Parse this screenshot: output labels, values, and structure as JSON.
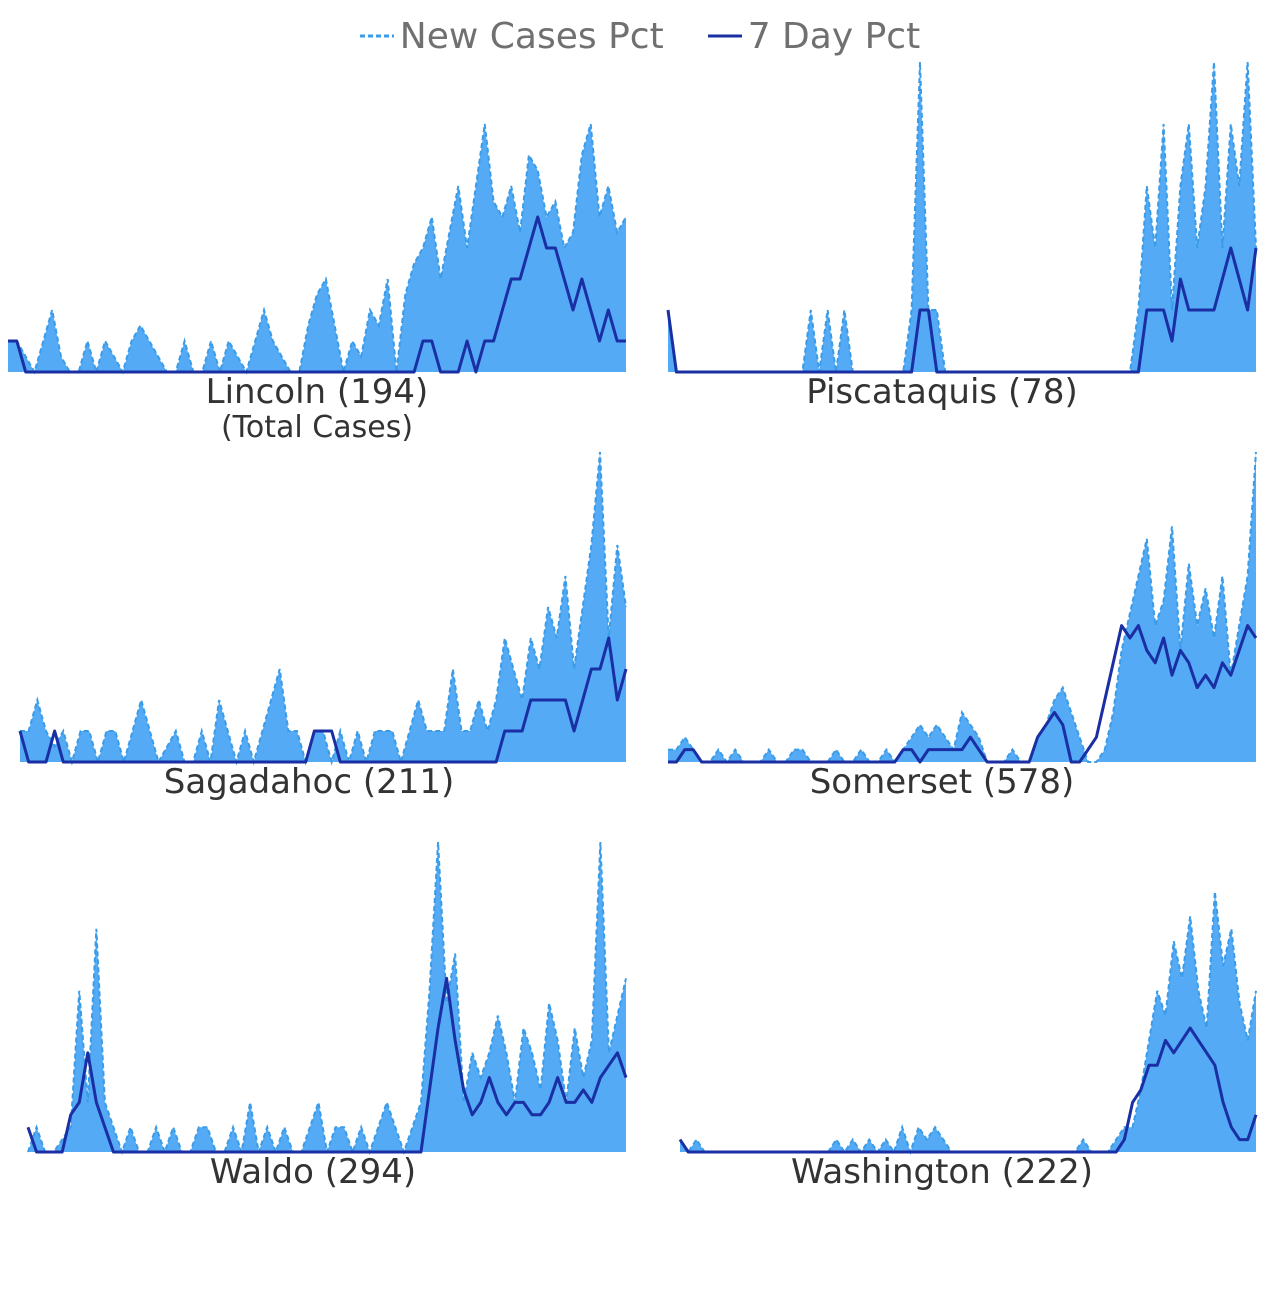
{
  "legend": {
    "items": [
      {
        "label": "New Cases Pct",
        "style": "dashed",
        "color": "#3a9ce8"
      },
      {
        "label": "7 Day Pct",
        "style": "solid",
        "color": "#1a2fa3"
      }
    ]
  },
  "colors": {
    "fill": "#54aaf5",
    "dashed": "#3a9ce8",
    "line": "#1a2fa3"
  },
  "chart_data": [
    {
      "type": "area",
      "county": "Lincoln",
      "title": "Lincoln (194)",
      "subtitle": "(Total Cases)",
      "ylim": [
        0,
        1
      ],
      "new_cases_pct": [
        0.1,
        0.1,
        0.05,
        0.0,
        0.1,
        0.2,
        0.05,
        0.0,
        0.0,
        0.1,
        0.0,
        0.1,
        0.05,
        0.0,
        0.1,
        0.15,
        0.1,
        0.05,
        0.0,
        0.0,
        0.1,
        0.0,
        0.0,
        0.1,
        0.0,
        0.1,
        0.05,
        0.0,
        0.1,
        0.2,
        0.1,
        0.05,
        0.0,
        0.0,
        0.15,
        0.25,
        0.3,
        0.15,
        0.0,
        0.1,
        0.05,
        0.2,
        0.15,
        0.3,
        0.0,
        0.25,
        0.35,
        0.4,
        0.5,
        0.3,
        0.45,
        0.6,
        0.4,
        0.6,
        0.8,
        0.55,
        0.5,
        0.6,
        0.45,
        0.7,
        0.65,
        0.5,
        0.55,
        0.4,
        0.45,
        0.7,
        0.8,
        0.5,
        0.6,
        0.45,
        0.5
      ],
      "seven_day_pct": [
        0.1,
        0.1,
        0.0,
        0.0,
        0.0,
        0.0,
        0.0,
        0.0,
        0.0,
        0.0,
        0.0,
        0.0,
        0.0,
        0.0,
        0.0,
        0.0,
        0.0,
        0.0,
        0.0,
        0.0,
        0.0,
        0.0,
        0.0,
        0.0,
        0.0,
        0.0,
        0.0,
        0.0,
        0.0,
        0.0,
        0.0,
        0.0,
        0.0,
        0.0,
        0.0,
        0.0,
        0.0,
        0.0,
        0.0,
        0.0,
        0.0,
        0.0,
        0.0,
        0.0,
        0.0,
        0.0,
        0.0,
        0.1,
        0.1,
        0.0,
        0.0,
        0.0,
        0.1,
        0.0,
        0.1,
        0.1,
        0.2,
        0.3,
        0.3,
        0.4,
        0.5,
        0.4,
        0.4,
        0.3,
        0.2,
        0.3,
        0.2,
        0.1,
        0.2,
        0.1,
        0.1
      ]
    },
    {
      "type": "area",
      "county": "Piscataquis",
      "title": "Piscataquis (78)",
      "ylim": [
        0,
        1
      ],
      "new_cases_pct": [
        0.2,
        0.0,
        0.0,
        0.0,
        0.0,
        0.0,
        0.0,
        0.0,
        0.0,
        0.0,
        0.0,
        0.0,
        0.0,
        0.0,
        0.0,
        0.0,
        0.0,
        0.2,
        0.0,
        0.2,
        0.0,
        0.2,
        0.0,
        0.0,
        0.0,
        0.0,
        0.0,
        0.0,
        0.0,
        0.2,
        1.0,
        0.2,
        0.2,
        0.0,
        0.0,
        0.0,
        0.0,
        0.0,
        0.0,
        0.0,
        0.0,
        0.0,
        0.0,
        0.0,
        0.0,
        0.0,
        0.0,
        0.0,
        0.0,
        0.0,
        0.0,
        0.0,
        0.0,
        0.0,
        0.0,
        0.0,
        0.2,
        0.6,
        0.4,
        0.8,
        0.2,
        0.6,
        0.8,
        0.4,
        0.6,
        1.0,
        0.4,
        0.8,
        0.6,
        1.0,
        0.4
      ],
      "seven_day_pct": [
        0.2,
        0.0,
        0.0,
        0.0,
        0.0,
        0.0,
        0.0,
        0.0,
        0.0,
        0.0,
        0.0,
        0.0,
        0.0,
        0.0,
        0.0,
        0.0,
        0.0,
        0.0,
        0.0,
        0.0,
        0.0,
        0.0,
        0.0,
        0.0,
        0.0,
        0.0,
        0.0,
        0.0,
        0.0,
        0.0,
        0.2,
        0.2,
        0.0,
        0.0,
        0.0,
        0.0,
        0.0,
        0.0,
        0.0,
        0.0,
        0.0,
        0.0,
        0.0,
        0.0,
        0.0,
        0.0,
        0.0,
        0.0,
        0.0,
        0.0,
        0.0,
        0.0,
        0.0,
        0.0,
        0.0,
        0.0,
        0.0,
        0.2,
        0.2,
        0.2,
        0.1,
        0.3,
        0.2,
        0.2,
        0.2,
        0.2,
        0.3,
        0.4,
        0.3,
        0.2,
        0.4
      ]
    },
    {
      "type": "area",
      "county": "Sagadahoc",
      "title": "Sagadahoc (211)",
      "ylim": [
        0,
        1
      ],
      "new_cases_pct": [
        0.1,
        0.1,
        0.2,
        0.1,
        0.05,
        0.1,
        0.0,
        0.1,
        0.1,
        0.0,
        0.1,
        0.1,
        0.0,
        0.1,
        0.2,
        0.1,
        0.0,
        0.05,
        0.1,
        0.0,
        0.0,
        0.1,
        0.0,
        0.2,
        0.1,
        0.0,
        0.1,
        0.0,
        0.1,
        0.2,
        0.3,
        0.1,
        0.1,
        0.0,
        0.1,
        0.1,
        0.0,
        0.1,
        0.0,
        0.1,
        0.0,
        0.1,
        0.1,
        0.1,
        0.0,
        0.1,
        0.2,
        0.1,
        0.1,
        0.1,
        0.3,
        0.1,
        0.1,
        0.2,
        0.1,
        0.2,
        0.4,
        0.3,
        0.2,
        0.4,
        0.3,
        0.5,
        0.4,
        0.6,
        0.3,
        0.5,
        0.7,
        1.0,
        0.4,
        0.7,
        0.5
      ],
      "seven_day_pct": [
        0.1,
        0.0,
        0.0,
        0.0,
        0.1,
        0.0,
        0.0,
        0.0,
        0.0,
        0.0,
        0.0,
        0.0,
        0.0,
        0.0,
        0.0,
        0.0,
        0.0,
        0.0,
        0.0,
        0.0,
        0.0,
        0.0,
        0.0,
        0.0,
        0.0,
        0.0,
        0.0,
        0.0,
        0.0,
        0.0,
        0.0,
        0.0,
        0.0,
        0.0,
        0.1,
        0.1,
        0.1,
        0.0,
        0.0,
        0.0,
        0.0,
        0.0,
        0.0,
        0.0,
        0.0,
        0.0,
        0.0,
        0.0,
        0.0,
        0.0,
        0.0,
        0.0,
        0.0,
        0.0,
        0.0,
        0.0,
        0.1,
        0.1,
        0.1,
        0.2,
        0.2,
        0.2,
        0.2,
        0.2,
        0.1,
        0.2,
        0.3,
        0.3,
        0.4,
        0.2,
        0.3
      ]
    },
    {
      "type": "area",
      "county": "Somerset",
      "title": "Somerset (578)",
      "ylim": [
        0,
        1
      ],
      "new_cases_pct": [
        0.04,
        0.04,
        0.08,
        0.04,
        0.0,
        0.0,
        0.04,
        0.0,
        0.04,
        0.0,
        0.0,
        0.0,
        0.04,
        0.0,
        0.0,
        0.04,
        0.04,
        0.0,
        0.0,
        0.0,
        0.04,
        0.0,
        0.0,
        0.04,
        0.0,
        0.0,
        0.04,
        0.0,
        0.04,
        0.08,
        0.12,
        0.08,
        0.12,
        0.08,
        0.04,
        0.16,
        0.12,
        0.08,
        0.0,
        0.0,
        0.0,
        0.04,
        0.0,
        0.0,
        0.08,
        0.12,
        0.2,
        0.24,
        0.16,
        0.08,
        0.0,
        0.0,
        0.04,
        0.16,
        0.36,
        0.48,
        0.6,
        0.72,
        0.44,
        0.52,
        0.76,
        0.36,
        0.64,
        0.44,
        0.56,
        0.4,
        0.6,
        0.28,
        0.44,
        0.6,
        1.0
      ],
      "seven_day_pct": [
        0.0,
        0.0,
        0.04,
        0.04,
        0.0,
        0.0,
        0.0,
        0.0,
        0.0,
        0.0,
        0.0,
        0.0,
        0.0,
        0.0,
        0.0,
        0.0,
        0.0,
        0.0,
        0.0,
        0.0,
        0.0,
        0.0,
        0.0,
        0.0,
        0.0,
        0.0,
        0.0,
        0.0,
        0.04,
        0.04,
        0.0,
        0.04,
        0.04,
        0.04,
        0.04,
        0.04,
        0.08,
        0.04,
        0.0,
        0.0,
        0.0,
        0.0,
        0.0,
        0.0,
        0.08,
        0.12,
        0.16,
        0.12,
        0.0,
        0.0,
        0.04,
        0.08,
        0.2,
        0.32,
        0.44,
        0.4,
        0.44,
        0.36,
        0.32,
        0.4,
        0.28,
        0.36,
        0.32,
        0.24,
        0.28,
        0.24,
        0.32,
        0.28,
        0.36,
        0.44,
        0.4
      ]
    },
    {
      "type": "area",
      "county": "Waldo",
      "title": "Waldo (294)",
      "ylim": [
        0,
        1
      ],
      "new_cases_pct": [
        0.0,
        0.08,
        0.0,
        0.0,
        0.04,
        0.08,
        0.52,
        0.16,
        0.72,
        0.16,
        0.08,
        0.0,
        0.08,
        0.0,
        0.0,
        0.08,
        0.0,
        0.08,
        0.0,
        0.0,
        0.08,
        0.08,
        0.0,
        0.0,
        0.08,
        0.0,
        0.16,
        0.0,
        0.08,
        0.0,
        0.08,
        0.0,
        0.0,
        0.08,
        0.16,
        0.0,
        0.08,
        0.08,
        0.0,
        0.08,
        0.0,
        0.08,
        0.16,
        0.08,
        0.0,
        0.08,
        0.16,
        0.52,
        1.0,
        0.48,
        0.64,
        0.16,
        0.32,
        0.24,
        0.32,
        0.44,
        0.32,
        0.16,
        0.4,
        0.32,
        0.2,
        0.48,
        0.36,
        0.16,
        0.4,
        0.24,
        0.36,
        1.0,
        0.32,
        0.44,
        0.56
      ],
      "seven_day_pct": [
        0.08,
        0.0,
        0.0,
        0.0,
        0.0,
        0.12,
        0.16,
        0.32,
        0.16,
        0.08,
        0.0,
        0.0,
        0.0,
        0.0,
        0.0,
        0.0,
        0.0,
        0.0,
        0.0,
        0.0,
        0.0,
        0.0,
        0.0,
        0.0,
        0.0,
        0.0,
        0.0,
        0.0,
        0.0,
        0.0,
        0.0,
        0.0,
        0.0,
        0.0,
        0.0,
        0.0,
        0.0,
        0.0,
        0.0,
        0.0,
        0.0,
        0.0,
        0.0,
        0.0,
        0.0,
        0.0,
        0.0,
        0.2,
        0.4,
        0.56,
        0.36,
        0.2,
        0.12,
        0.16,
        0.24,
        0.16,
        0.12,
        0.16,
        0.16,
        0.12,
        0.12,
        0.16,
        0.24,
        0.16,
        0.16,
        0.2,
        0.16,
        0.24,
        0.28,
        0.32,
        0.24
      ]
    },
    {
      "type": "area",
      "county": "Washington",
      "title": "Washington (222)",
      "ylim": [
        0,
        1
      ],
      "new_cases_pct": [
        0.04,
        0.0,
        0.04,
        0.0,
        0.0,
        0.0,
        0.0,
        0.0,
        0.0,
        0.0,
        0.0,
        0.0,
        0.0,
        0.0,
        0.0,
        0.0,
        0.0,
        0.0,
        0.0,
        0.04,
        0.0,
        0.04,
        0.0,
        0.04,
        0.0,
        0.04,
        0.0,
        0.08,
        0.0,
        0.08,
        0.04,
        0.08,
        0.04,
        0.0,
        0.0,
        0.0,
        0.0,
        0.0,
        0.0,
        0.0,
        0.0,
        0.0,
        0.0,
        0.0,
        0.0,
        0.0,
        0.0,
        0.0,
        0.0,
        0.04,
        0.0,
        0.0,
        0.0,
        0.04,
        0.08,
        0.08,
        0.2,
        0.36,
        0.52,
        0.44,
        0.68,
        0.56,
        0.76,
        0.52,
        0.4,
        0.84,
        0.6,
        0.72,
        0.48,
        0.36,
        0.52
      ],
      "seven_day_pct": [
        0.04,
        0.0,
        0.0,
        0.0,
        0.0,
        0.0,
        0.0,
        0.0,
        0.0,
        0.0,
        0.0,
        0.0,
        0.0,
        0.0,
        0.0,
        0.0,
        0.0,
        0.0,
        0.0,
        0.0,
        0.0,
        0.0,
        0.0,
        0.0,
        0.0,
        0.0,
        0.0,
        0.0,
        0.0,
        0.0,
        0.0,
        0.0,
        0.0,
        0.0,
        0.0,
        0.0,
        0.0,
        0.0,
        0.0,
        0.0,
        0.0,
        0.0,
        0.0,
        0.0,
        0.0,
        0.0,
        0.0,
        0.0,
        0.0,
        0.0,
        0.0,
        0.0,
        0.0,
        0.0,
        0.04,
        0.16,
        0.2,
        0.28,
        0.28,
        0.36,
        0.32,
        0.36,
        0.4,
        0.36,
        0.32,
        0.28,
        0.16,
        0.08,
        0.04,
        0.04,
        0.12
      ]
    }
  ]
}
